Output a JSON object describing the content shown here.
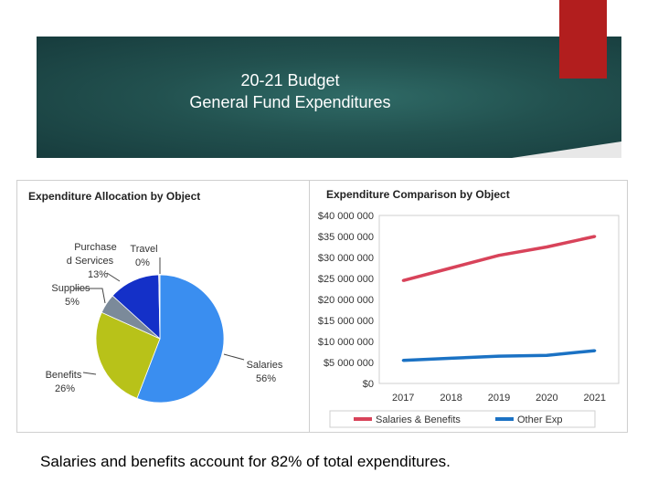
{
  "slide": {
    "title_line1": "20-21 Budget",
    "title_line2": "General Fund Expenditures",
    "caption": "Salaries and benefits account for 82% of total expenditures."
  },
  "colors": {
    "banner": "#1e4a4a",
    "accent_red": "#b21e1e"
  },
  "chart_data": [
    {
      "type": "pie",
      "title": "Expenditure Allocation by Object",
      "slices": [
        {
          "label": "Salaries",
          "percent": 56,
          "percent_label": "56%",
          "value": 56,
          "color": "#3a8ef0"
        },
        {
          "label": "Benefits",
          "percent": 26,
          "percent_label": "26%",
          "value": 26,
          "color": "#b8c219"
        },
        {
          "label": "Supplies",
          "percent": 5,
          "percent_label": "5%",
          "value": 5,
          "color": "#7b8a9a"
        },
        {
          "label": "Purchased Services",
          "percent": 13,
          "percent_label": "13%",
          "value": 13,
          "color": "#1430c8"
        },
        {
          "label": "Travel",
          "percent": 0,
          "percent_label": "0%",
          "value": 0.3,
          "color": "#d8d8d8"
        }
      ]
    },
    {
      "type": "line",
      "title": "Expenditure Comparison by Object",
      "x": [
        2017,
        2018,
        2019,
        2020,
        2021
      ],
      "x_tick_labels": [
        "2017",
        "2018",
        "2019",
        "2020",
        "2021"
      ],
      "y_tick_labels": [
        "$40 000 000",
        "$35 000 000",
        "$30 000 000",
        "$25 000 000",
        "$20 000 000",
        "$15 000 000",
        "$10 000 000",
        "$5 000 000",
        "$0"
      ],
      "ylim": [
        0,
        40000000
      ],
      "grid": false,
      "legend_position": "bottom",
      "series": [
        {
          "name": "Salaries & Benefits",
          "color": "#d8435a",
          "values": [
            24500000,
            27500000,
            30500000,
            32500000,
            35000000
          ]
        },
        {
          "name": "Other Exp",
          "color": "#1b72c4",
          "values": [
            5500000,
            6000000,
            6500000,
            6700000,
            7800000
          ]
        }
      ]
    }
  ]
}
